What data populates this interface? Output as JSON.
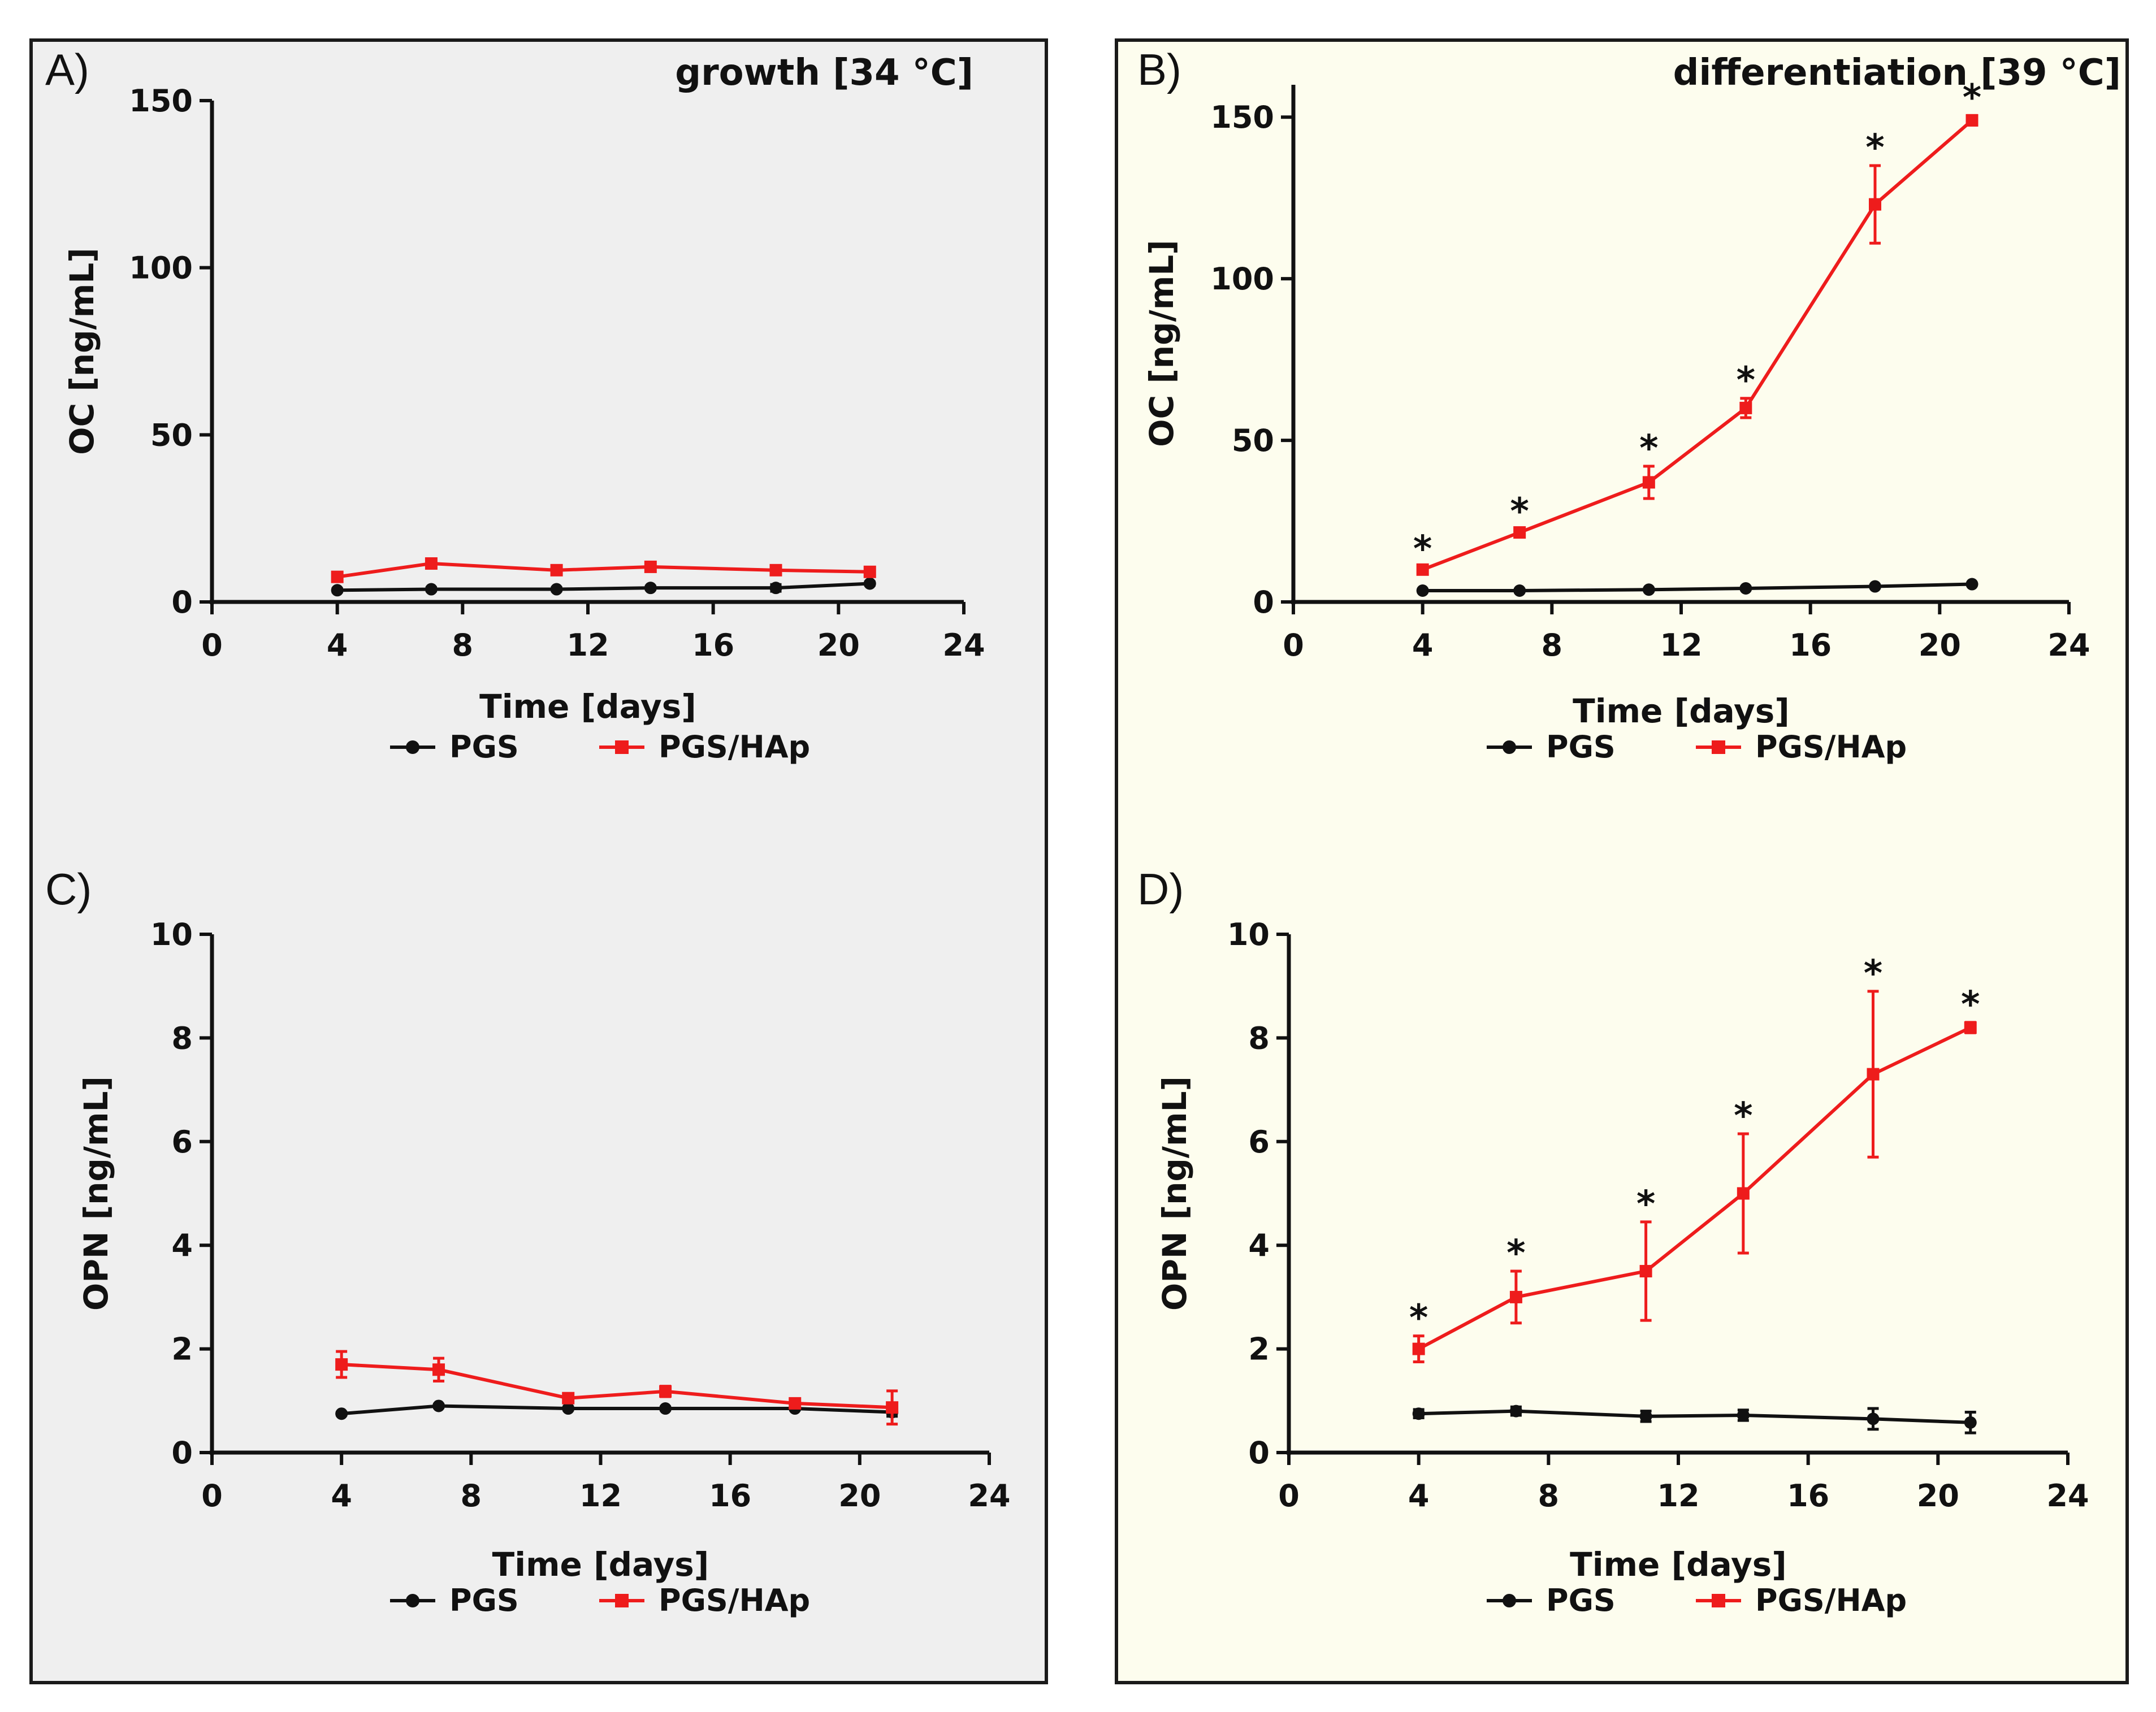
{
  "chart_data": [
    {
      "type": "line",
      "panel": "A)",
      "title": "growth [34 °C]",
      "xlabel": "Time [days]",
      "ylabel": "OC [ng/mL]",
      "xlim": [
        0,
        24
      ],
      "ylim": [
        0,
        150
      ],
      "xticks": [
        0,
        4,
        8,
        12,
        16,
        20,
        24
      ],
      "yticks": [
        0,
        50,
        100,
        150
      ],
      "x": [
        4,
        7,
        11,
        14,
        18,
        21
      ],
      "series": [
        {
          "name": "PGS",
          "color": "#111111",
          "marker": "circle",
          "values": [
            3.5,
            3.8,
            3.8,
            4.2,
            4.2,
            5.5
          ],
          "errors": [
            0.5,
            0.5,
            0.5,
            0.5,
            1.0,
            0.5
          ]
        },
        {
          "name": "PGS/HAp",
          "color": "#ee1c1c",
          "marker": "square",
          "values": [
            7.5,
            11.5,
            9.5,
            10.5,
            9.5,
            9.0
          ],
          "errors": [
            0.6,
            0.8,
            0.6,
            0.6,
            0.6,
            0.6
          ]
        }
      ],
      "significance": []
    },
    {
      "type": "line",
      "panel": "B)",
      "title": "differentiation [39 °C]",
      "xlabel": "Time [days]",
      "ylabel": "OC [ng/mL]",
      "xlim": [
        0,
        24
      ],
      "ylim": [
        0,
        160
      ],
      "xticks": [
        0,
        4,
        8,
        12,
        16,
        20,
        24
      ],
      "yticks": [
        0,
        50,
        100,
        150
      ],
      "x": [
        4,
        7,
        11,
        14,
        18,
        21
      ],
      "series": [
        {
          "name": "PGS",
          "color": "#111111",
          "marker": "circle",
          "values": [
            3.5,
            3.5,
            3.8,
            4.2,
            4.8,
            5.5
          ],
          "errors": [
            0.4,
            0.4,
            0.4,
            0.4,
            0.4,
            0.4
          ]
        },
        {
          "name": "PGS/HAp",
          "color": "#ee1c1c",
          "marker": "square",
          "values": [
            10,
            21.5,
            37,
            60,
            123,
            149
          ],
          "errors": [
            0.8,
            1.0,
            5.0,
            3.0,
            12.0,
            1.5
          ]
        }
      ],
      "significance": [
        "*",
        "*",
        "*",
        "*",
        "*",
        "*"
      ]
    },
    {
      "type": "line",
      "panel": "C)",
      "title": "",
      "xlabel": "Time [days]",
      "ylabel": "OPN [ng/mL]",
      "xlim": [
        0,
        24
      ],
      "ylim": [
        0,
        10
      ],
      "xticks": [
        0,
        4,
        8,
        12,
        16,
        20,
        24
      ],
      "yticks": [
        0,
        2,
        4,
        6,
        8,
        10
      ],
      "x": [
        4,
        7,
        11,
        14,
        18,
        21
      ],
      "series": [
        {
          "name": "PGS",
          "color": "#111111",
          "marker": "circle",
          "values": [
            0.75,
            0.9,
            0.85,
            0.85,
            0.85,
            0.78
          ],
          "errors": [
            0.03,
            0.03,
            0.03,
            0.03,
            0.03,
            0.08
          ]
        },
        {
          "name": "PGS/HAp",
          "color": "#ee1c1c",
          "marker": "square",
          "values": [
            1.7,
            1.6,
            1.05,
            1.18,
            0.95,
            0.87
          ],
          "errors": [
            0.25,
            0.22,
            0.06,
            0.1,
            0.07,
            0.32
          ]
        }
      ],
      "significance": []
    },
    {
      "type": "line",
      "panel": "D)",
      "title": "",
      "xlabel": "Time [days]",
      "ylabel": "OPN [ng/mL]",
      "xlim": [
        0,
        24
      ],
      "ylim": [
        0,
        10
      ],
      "xticks": [
        0,
        4,
        8,
        12,
        16,
        20,
        24
      ],
      "yticks": [
        0,
        2,
        4,
        6,
        8,
        10
      ],
      "x": [
        4,
        7,
        11,
        14,
        18,
        21
      ],
      "series": [
        {
          "name": "PGS",
          "color": "#111111",
          "marker": "circle",
          "values": [
            0.75,
            0.8,
            0.7,
            0.72,
            0.65,
            0.58
          ],
          "errors": [
            0.08,
            0.08,
            0.1,
            0.1,
            0.2,
            0.2
          ]
        },
        {
          "name": "PGS/HAp",
          "color": "#ee1c1c",
          "marker": "square",
          "values": [
            2.0,
            3.0,
            3.5,
            5.0,
            7.3,
            8.2
          ],
          "errors": [
            0.25,
            0.5,
            0.95,
            1.15,
            1.6,
            0.1
          ]
        }
      ],
      "significance": [
        "*",
        "*",
        "*",
        "*",
        "*",
        "*"
      ]
    }
  ]
}
